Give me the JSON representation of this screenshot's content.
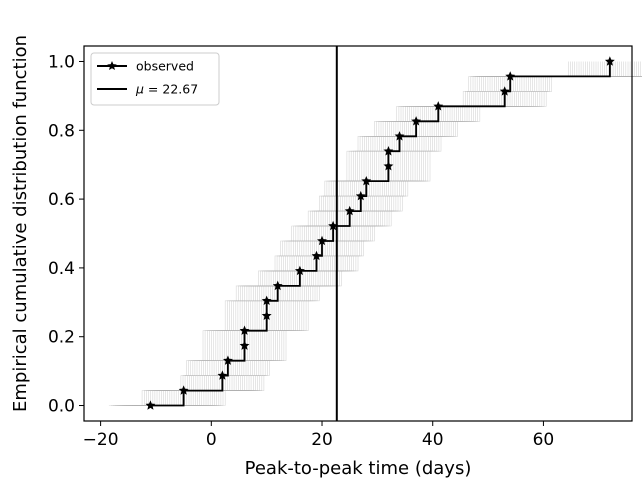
{
  "chart_data": {
    "type": "line",
    "title": "",
    "xlabel": "Peak-to-peak time (days)",
    "ylabel": "Empirical cumulative distribution function",
    "xlim": [
      -23,
      76
    ],
    "ylim": [
      -0.045,
      1.045
    ],
    "x_ticks": [
      -20,
      0,
      20,
      40,
      60
    ],
    "x_tick_labels": [
      "−20",
      "0",
      "20",
      "40",
      "60"
    ],
    "y_ticks": [
      0.0,
      0.2,
      0.4,
      0.6,
      0.8,
      1.0
    ],
    "y_tick_labels": [
      "0.0",
      "0.2",
      "0.4",
      "0.6",
      "0.8",
      "1.0"
    ],
    "grid": false,
    "legend": {
      "placement": "top-left",
      "entries": [
        {
          "label": "observed",
          "marker": "star"
        },
        {
          "label_prefix": "μ",
          "label": " =  22.67"
        }
      ]
    },
    "series": [
      {
        "name": "observed",
        "style": "step",
        "marker": "star",
        "color": "#000000",
        "x": [
          -11,
          -5,
          2,
          3,
          6,
          6,
          10,
          10,
          12,
          16,
          19,
          20,
          22,
          25,
          27,
          28,
          32,
          32,
          34,
          37,
          41,
          53,
          54,
          72
        ],
        "y": [
          0.0,
          0.0435,
          0.087,
          0.1304,
          0.1739,
          0.2174,
          0.2609,
          0.3043,
          0.3478,
          0.3913,
          0.4348,
          0.4783,
          0.5217,
          0.5652,
          0.6087,
          0.6522,
          0.6957,
          0.7391,
          0.7826,
          0.8261,
          0.8696,
          0.913,
          0.9565,
          1.0
        ]
      },
      {
        "name": "μ",
        "style": "vline",
        "color": "#000000",
        "x": 22.67
      }
    ],
    "uncertainty_band": {
      "description_color": "#b0b0b0",
      "count": 40,
      "max_shift": 7.5
    }
  }
}
